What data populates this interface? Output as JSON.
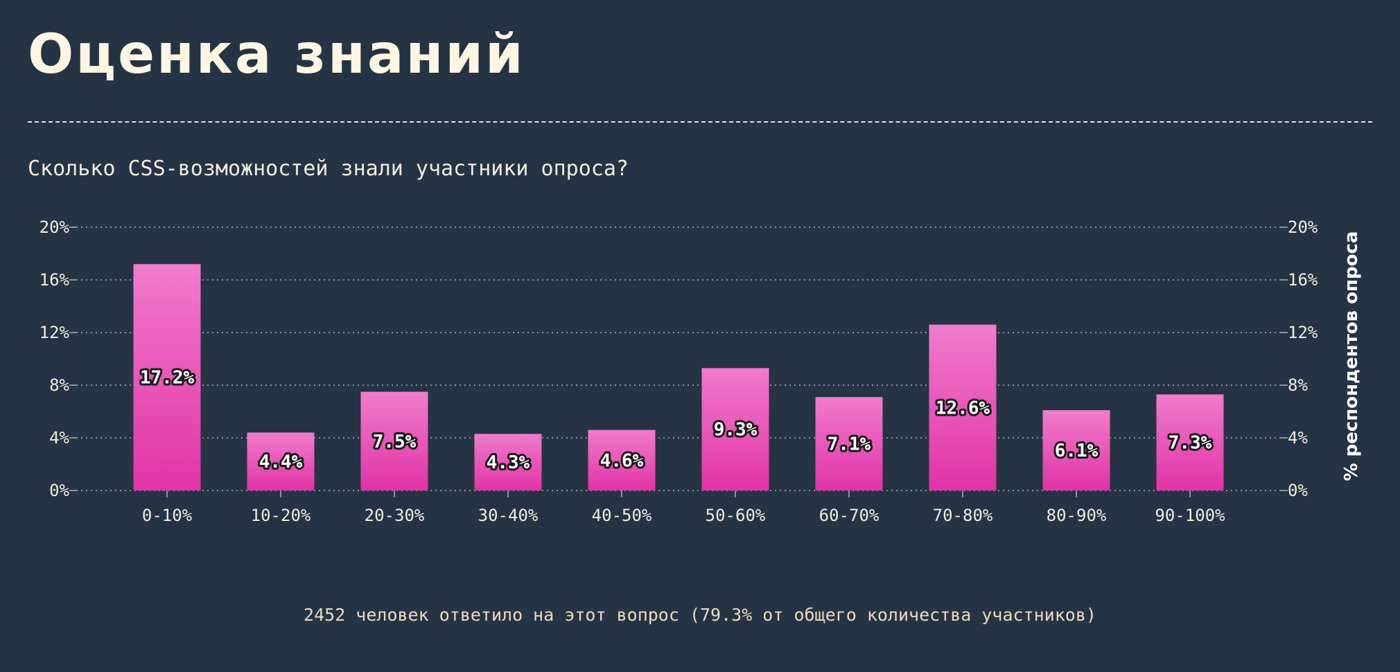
{
  "page": {
    "title": "Оценка знаний",
    "subtitle": "Сколько CSS-возможностей знали участники опроса?",
    "footnote": "2452 человек ответило на этот вопрос (79.3% от общего количества участников)"
  },
  "colors": {
    "background": "#253344",
    "bar_top": "#f07ccc",
    "bar_bottom": "#e133a6",
    "gridline": "#8a93a0",
    "text": "#f2ece0"
  },
  "chart_data": {
    "type": "bar",
    "categories": [
      "0-10%",
      "10-20%",
      "20-30%",
      "30-40%",
      "40-50%",
      "50-60%",
      "60-70%",
      "70-80%",
      "80-90%",
      "90-100%"
    ],
    "values": [
      17.2,
      4.4,
      7.5,
      4.3,
      4.6,
      9.3,
      7.1,
      12.6,
      6.1,
      7.3
    ],
    "value_labels": [
      "17.2%",
      "4.4%",
      "7.5%",
      "4.3%",
      "4.6%",
      "9.3%",
      "7.1%",
      "12.6%",
      "6.1%",
      "7.3%"
    ],
    "ylim": [
      0,
      20
    ],
    "yticks": [
      0,
      4,
      8,
      12,
      16,
      20
    ],
    "ytick_labels": [
      "0%",
      "4%",
      "8%",
      "12%",
      "16%",
      "20%"
    ],
    "ylabel": "% респондентов опроса",
    "grid": true
  }
}
